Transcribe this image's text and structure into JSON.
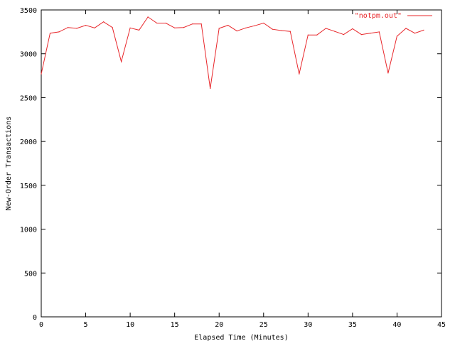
{
  "chart_data": {
    "type": "line",
    "title": "",
    "xlabel": "Elapsed Time (Minutes)",
    "ylabel": "New-Order Transactions",
    "xlim": [
      0,
      45
    ],
    "ylim": [
      0,
      3500
    ],
    "xticks": [
      0,
      5,
      10,
      15,
      20,
      25,
      30,
      35,
      40,
      45
    ],
    "yticks": [
      0,
      500,
      1000,
      1500,
      2000,
      2500,
      3000,
      3500
    ],
    "grid": false,
    "legend_position": "top-right",
    "series": [
      {
        "name": "\"notpm.out\"",
        "color": "#e8262a",
        "x": [
          0,
          1,
          2,
          3,
          4,
          5,
          6,
          7,
          8,
          9,
          10,
          11,
          12,
          13,
          14,
          15,
          16,
          17,
          18,
          19,
          20,
          21,
          22,
          23,
          24,
          25,
          26,
          27,
          28,
          29,
          30,
          31,
          32,
          33,
          34,
          35,
          36,
          37,
          38,
          39,
          40,
          41,
          42,
          43
        ],
        "y": [
          2770,
          3235,
          3250,
          3300,
          3290,
          3325,
          3295,
          3365,
          3300,
          2910,
          3295,
          3270,
          3420,
          3350,
          3350,
          3295,
          3300,
          3340,
          3340,
          2605,
          3290,
          3325,
          3260,
          3295,
          3320,
          3350,
          3280,
          3265,
          3255,
          2770,
          3215,
          3215,
          3290,
          3255,
          3220,
          3285,
          3220,
          3235,
          3250,
          2780,
          3200,
          3290,
          3235,
          3270
        ]
      }
    ]
  }
}
